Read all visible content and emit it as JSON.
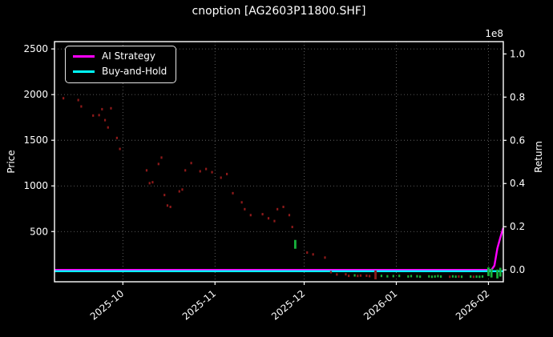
{
  "figure": {
    "background": "#000000",
    "text_color": "#ffffff"
  },
  "chart_data": {
    "type": "line+scatter",
    "title": "cnoption [AG2603P11800.SHF]",
    "ylabel_left": "Price",
    "ylabel_right": "Return",
    "grid": true,
    "grid_color": "rgba(255,255,255,0.45)",
    "spine_color": "#ffffff",
    "x_domain": [
      "2025-09-08",
      "2026-02-06"
    ],
    "x_ticks": [
      {
        "date": "2025-10-01",
        "label": "2025-10"
      },
      {
        "date": "2025-11-01",
        "label": "2025-11"
      },
      {
        "date": "2025-12-01",
        "label": "2025-12"
      },
      {
        "date": "2026-01-01",
        "label": "2026-01"
      },
      {
        "date": "2026-02-01",
        "label": "2026-02"
      }
    ],
    "price_axis": {
      "min": -50,
      "max": 2580,
      "ticks": [
        {
          "v": 500,
          "label": "500"
        },
        {
          "v": 1000,
          "label": "1000"
        },
        {
          "v": 1500,
          "label": "1500"
        },
        {
          "v": 2000,
          "label": "2000"
        },
        {
          "v": 2500,
          "label": "2500"
        }
      ]
    },
    "return_axis": {
      "min": -0.055,
      "max": 1.057,
      "offset_label": "1e8",
      "ticks": [
        {
          "v": 0.0,
          "label": "0.0"
        },
        {
          "v": 0.2,
          "label": "0.2"
        },
        {
          "v": 0.4,
          "label": "0.4"
        },
        {
          "v": 0.6,
          "label": "0.6"
        },
        {
          "v": 0.8,
          "label": "0.8"
        },
        {
          "v": 1.0,
          "label": "1.0"
        }
      ]
    },
    "legend": {
      "position": "upper-left",
      "entries": [
        {
          "label": "AI Strategy",
          "color": "#ff00ff"
        },
        {
          "label": "Buy-and-Hold",
          "color": "#00ffff"
        }
      ]
    },
    "series": [
      {
        "name": "AI Strategy",
        "type": "line",
        "axis": "return",
        "color": "#ff00ff",
        "points": [
          [
            "2025-09-08",
            0
          ],
          [
            "2026-02-02",
            0
          ],
          [
            "2026-02-03",
            0.02
          ],
          [
            "2026-02-04",
            0.1
          ],
          [
            "2026-02-05",
            0.15
          ],
          [
            "2026-02-06",
            0.195
          ]
        ]
      },
      {
        "name": "Buy-and-Hold",
        "type": "line",
        "axis": "return",
        "color": "#00ffff",
        "points": [
          [
            "2025-09-08",
            -0.006
          ],
          [
            "2026-02-06",
            -0.006
          ]
        ]
      },
      {
        "name": "price-marks",
        "type": "scatter",
        "axis": "price",
        "colors": {
          "r": "#8f1a1a",
          "g": "#17b33c"
        },
        "points": [
          [
            "2025-09-11",
            1960,
            "r"
          ],
          [
            "2025-09-16",
            1940,
            "r"
          ],
          [
            "2025-09-17",
            1870,
            "r"
          ],
          [
            "2025-09-21",
            1770,
            "r"
          ],
          [
            "2025-09-23",
            1775,
            "r"
          ],
          [
            "2025-09-24",
            1840,
            "r"
          ],
          [
            "2025-09-25",
            1720,
            "r"
          ],
          [
            "2025-09-26",
            1640,
            "r"
          ],
          [
            "2025-09-27",
            1850,
            "r"
          ],
          [
            "2025-09-29",
            1525,
            "r"
          ],
          [
            "2025-09-30",
            1405,
            "r"
          ],
          [
            "2025-10-09",
            1170,
            "r"
          ],
          [
            "2025-10-10",
            1030,
            "r"
          ],
          [
            "2025-10-11",
            1040,
            "r"
          ],
          [
            "2025-10-13",
            1240,
            "r"
          ],
          [
            "2025-10-14",
            1310,
            "r"
          ],
          [
            "2025-10-15",
            900,
            "r"
          ],
          [
            "2025-10-16",
            785,
            "r"
          ],
          [
            "2025-10-17",
            770,
            "r"
          ],
          [
            "2025-10-20",
            940,
            "r"
          ],
          [
            "2025-10-21",
            960,
            "r"
          ],
          [
            "2025-10-22",
            1170,
            "r"
          ],
          [
            "2025-10-24",
            1250,
            "r"
          ],
          [
            "2025-10-27",
            1160,
            "r"
          ],
          [
            "2025-10-29",
            1185,
            "r"
          ],
          [
            "2025-10-31",
            1150,
            "r"
          ],
          [
            "2025-11-03",
            1090,
            "r"
          ],
          [
            "2025-11-05",
            1130,
            "r"
          ],
          [
            "2025-11-07",
            920,
            "r"
          ],
          [
            "2025-11-10",
            820,
            "r"
          ],
          [
            "2025-11-11",
            745,
            "r"
          ],
          [
            "2025-11-13",
            680,
            "r"
          ],
          [
            "2025-11-17",
            690,
            "r"
          ],
          [
            "2025-11-19",
            645,
            "r"
          ],
          [
            "2025-11-21",
            615,
            "r"
          ],
          [
            "2025-11-22",
            745,
            "r"
          ],
          [
            "2025-11-24",
            770,
            "r"
          ],
          [
            "2025-11-26",
            680,
            "r"
          ],
          [
            "2025-11-27",
            550,
            "r"
          ],
          [
            "2025-11-28",
            360,
            "g",
            "bar"
          ],
          [
            "2025-12-02",
            270,
            "r"
          ],
          [
            "2025-12-04",
            250,
            "r"
          ],
          [
            "2025-12-08",
            215,
            "r"
          ],
          [
            "2025-12-10",
            55,
            "r"
          ],
          [
            "2025-12-12",
            30,
            "r"
          ],
          [
            "2025-12-15",
            32,
            "r"
          ],
          [
            "2025-12-16",
            15,
            "r"
          ],
          [
            "2025-12-18",
            20,
            "g"
          ],
          [
            "2025-12-19",
            14,
            "r"
          ],
          [
            "2025-12-20",
            18,
            "r"
          ],
          [
            "2025-12-22",
            16,
            "r"
          ],
          [
            "2025-12-23",
            12,
            "r"
          ],
          [
            "2025-12-25",
            25,
            "r",
            "bar"
          ],
          [
            "2025-12-27",
            14,
            "g"
          ],
          [
            "2025-12-29",
            10,
            "g"
          ],
          [
            "2025-12-31",
            12,
            "g"
          ],
          [
            "2026-01-02",
            14,
            "g"
          ],
          [
            "2026-01-05",
            8,
            "g"
          ],
          [
            "2026-01-06",
            12,
            "g"
          ],
          [
            "2026-01-08",
            10,
            "g"
          ],
          [
            "2026-01-09",
            6,
            "g"
          ],
          [
            "2026-01-12",
            9,
            "g"
          ],
          [
            "2026-01-13",
            5,
            "g"
          ],
          [
            "2026-01-14",
            8,
            "g"
          ],
          [
            "2026-01-15",
            12,
            "g"
          ],
          [
            "2026-01-16",
            7,
            "g"
          ],
          [
            "2026-01-19",
            5,
            "r"
          ],
          [
            "2026-01-20",
            9,
            "g"
          ],
          [
            "2026-01-21",
            6,
            "g"
          ],
          [
            "2026-01-22",
            8,
            "r"
          ],
          [
            "2026-01-23",
            5,
            "g"
          ],
          [
            "2026-01-26",
            7,
            "g"
          ],
          [
            "2026-01-27",
            4,
            "r"
          ],
          [
            "2026-01-28",
            6,
            "g"
          ],
          [
            "2026-01-29",
            5,
            "g"
          ],
          [
            "2026-01-30",
            8,
            "g"
          ],
          [
            "2026-02-01",
            60,
            "g",
            "bar"
          ],
          [
            "2026-02-02",
            45,
            "g",
            "bar"
          ],
          [
            "2026-02-04",
            35,
            "g",
            "bar"
          ],
          [
            "2026-02-05",
            55,
            "g",
            "bar"
          ]
        ]
      }
    ]
  }
}
